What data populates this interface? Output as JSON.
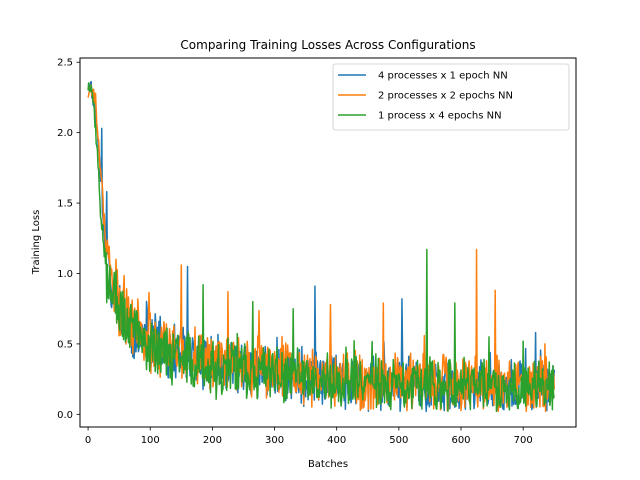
{
  "chart_data": {
    "type": "line",
    "title": "Comparing Training Losses Across Configurations",
    "xlabel": "Batches",
    "ylabel": "Training Loss",
    "xlim": [
      -13,
      785
    ],
    "ylim": [
      -0.09,
      2.53
    ],
    "xticks": [
      0,
      100,
      200,
      300,
      400,
      500,
      600,
      700
    ],
    "yticks": [
      0.0,
      0.5,
      1.0,
      1.5,
      2.0,
      2.5
    ],
    "grid": false,
    "legend_position": "upper right",
    "series": [
      {
        "name": "4 processes x 1 epoch NN",
        "color": "#1f77b4",
        "anchors": [
          [
            0,
            2.38
          ],
          [
            5,
            2.32
          ],
          [
            10,
            2.2
          ],
          [
            15,
            2.0
          ],
          [
            20,
            1.7
          ],
          [
            25,
            1.35
          ],
          [
            30,
            1.1
          ],
          [
            40,
            0.9
          ],
          [
            50,
            0.75
          ],
          [
            70,
            0.6
          ],
          [
            100,
            0.5
          ],
          [
            150,
            0.42
          ],
          [
            200,
            0.36
          ],
          [
            300,
            0.28
          ],
          [
            400,
            0.25
          ],
          [
            500,
            0.22
          ],
          [
            600,
            0.2
          ],
          [
            700,
            0.19
          ],
          [
            750,
            0.18
          ]
        ],
        "noise": 0.17,
        "spikes": [
          [
            22,
            2.03
          ],
          [
            30,
            1.58
          ],
          [
            160,
            1.05
          ],
          [
            365,
            0.91
          ],
          [
            505,
            0.82
          ],
          [
            720,
            0.58
          ]
        ],
        "seed": 11
      },
      {
        "name": "2 processes x 2 epochs NN",
        "color": "#ff7f0e",
        "anchors": [
          [
            0,
            2.28
          ],
          [
            5,
            2.3
          ],
          [
            10,
            2.25
          ],
          [
            15,
            2.05
          ],
          [
            20,
            1.75
          ],
          [
            25,
            1.45
          ],
          [
            30,
            1.15
          ],
          [
            40,
            0.95
          ],
          [
            50,
            0.78
          ],
          [
            70,
            0.62
          ],
          [
            100,
            0.52
          ],
          [
            150,
            0.44
          ],
          [
            200,
            0.38
          ],
          [
            300,
            0.3
          ],
          [
            400,
            0.26
          ],
          [
            500,
            0.23
          ],
          [
            600,
            0.21
          ],
          [
            700,
            0.2
          ],
          [
            750,
            0.22
          ]
        ],
        "noise": 0.18,
        "spikes": [
          [
            12,
            2.28
          ],
          [
            25,
            1.35
          ],
          [
            45,
            1.1
          ],
          [
            150,
            1.06
          ],
          [
            225,
            0.87
          ],
          [
            390,
            0.78
          ],
          [
            475,
            0.79
          ],
          [
            625,
            1.17
          ],
          [
            655,
            0.88
          ],
          [
            735,
            0.5
          ]
        ],
        "seed": 23
      },
      {
        "name": "1 process x 4 epochs NN",
        "color": "#2ca02c",
        "anchors": [
          [
            0,
            2.33
          ],
          [
            5,
            2.36
          ],
          [
            10,
            2.15
          ],
          [
            15,
            1.85
          ],
          [
            20,
            1.45
          ],
          [
            25,
            1.2
          ],
          [
            30,
            1.0
          ],
          [
            40,
            0.88
          ],
          [
            50,
            0.72
          ],
          [
            70,
            0.58
          ],
          [
            100,
            0.48
          ],
          [
            150,
            0.4
          ],
          [
            200,
            0.34
          ],
          [
            300,
            0.27
          ],
          [
            400,
            0.24
          ],
          [
            500,
            0.21
          ],
          [
            600,
            0.2
          ],
          [
            700,
            0.19
          ],
          [
            750,
            0.2
          ]
        ],
        "noise": 0.17,
        "spikes": [
          [
            45,
            1.02
          ],
          [
            185,
            0.92
          ],
          [
            265,
            0.8
          ],
          [
            330,
            0.75
          ],
          [
            545,
            1.17
          ],
          [
            590,
            0.79
          ],
          [
            645,
            0.55
          ],
          [
            700,
            0.52
          ]
        ],
        "seed": 37
      }
    ]
  }
}
